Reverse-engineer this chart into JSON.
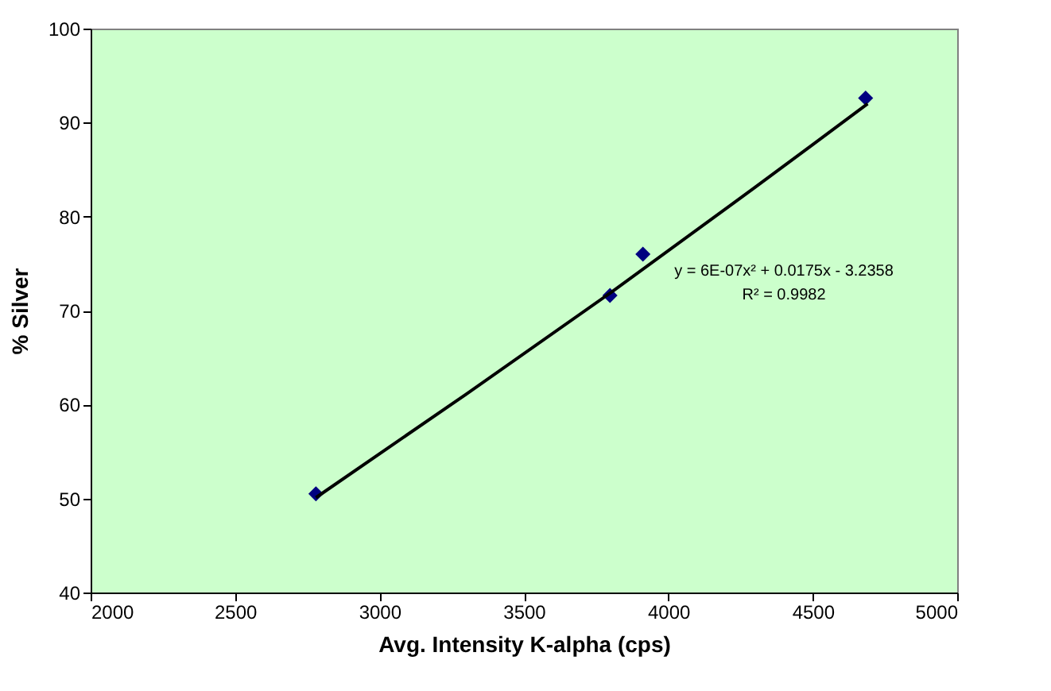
{
  "chart_data": {
    "type": "scatter",
    "xlabel": "Avg. Intensity K-alpha (cps)",
    "ylabel": "% Silver",
    "xlim": [
      2000,
      5000
    ],
    "xticks": [
      2000,
      2500,
      3000,
      3500,
      4000,
      4500,
      5000
    ],
    "ylim": [
      40,
      100
    ],
    "yticks": [
      40,
      50,
      60,
      70,
      80,
      90,
      100
    ],
    "grid": false,
    "marker": "diamond",
    "series": [
      {
        "color": "#000080",
        "x": [
          2780,
          3798,
          3912,
          4683
        ],
        "values": [
          50.5,
          71.6,
          76.0,
          92.6
        ]
      },
      {
        "type": "line",
        "color": "#000000",
        "marker": "none",
        "line_style": "solid",
        "x": [
          2780,
          3300,
          3800,
          4300,
          4690
        ],
        "values": [
          50.1,
          61.1,
          71.9,
          83.1,
          92.0
        ]
      }
    ],
    "annotations": [
      "y = 6E-07x² + 0.0175x - 3.2358",
      "R² = 0.9982"
    ]
  }
}
